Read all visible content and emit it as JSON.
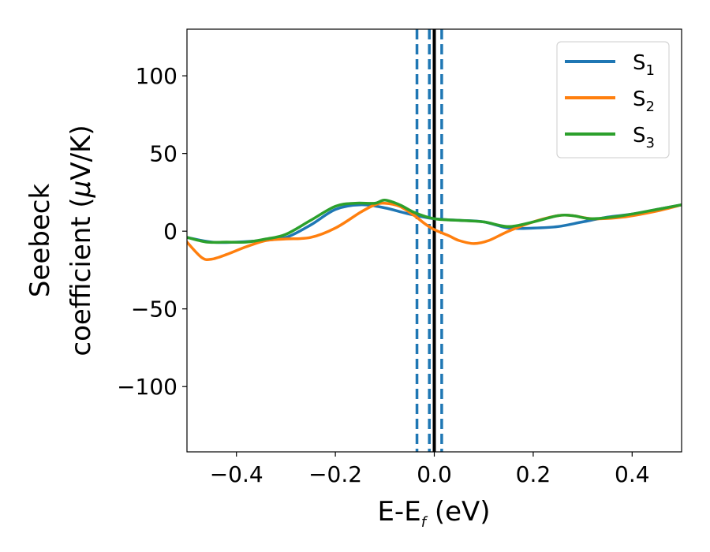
{
  "chart_data": {
    "type": "line",
    "xlabel": {
      "main": "E-E",
      "sub": "f",
      "unit": " (eV)"
    },
    "ylabel": {
      "line1": "Seebeck",
      "line2": "coefficient  (",
      "mu": "μ",
      "line2_end": "V/K)"
    },
    "xlim": [
      -0.5,
      0.5
    ],
    "ylim": [
      -142,
      130
    ],
    "xticks": [
      -0.4,
      -0.2,
      0.0,
      0.2,
      0.4
    ],
    "xtick_labels": [
      "−0.4",
      "−0.2",
      "0.0",
      "0.2",
      "0.4"
    ],
    "yticks": [
      100,
      50,
      0,
      -50,
      -100
    ],
    "ytick_labels": [
      "100",
      "50",
      "0",
      "−50",
      "−100"
    ],
    "grid": false,
    "legend_position": "top-right",
    "vlines": [
      {
        "x": 0.0,
        "style": "solid",
        "color": "#000000"
      },
      {
        "x": -0.035,
        "style": "dashed",
        "color": "#1f77b4"
      },
      {
        "x": -0.01,
        "style": "dashed",
        "color": "#1f77b4"
      },
      {
        "x": 0.015,
        "style": "dashed",
        "color": "#1f77b4"
      }
    ],
    "series": [
      {
        "name": "S",
        "sub": "1",
        "color": "#1f77b4",
        "points": [
          [
            -0.5,
            -4
          ],
          [
            -0.45,
            -7
          ],
          [
            -0.4,
            -7
          ],
          [
            -0.35,
            -6
          ],
          [
            -0.3,
            -4
          ],
          [
            -0.25,
            4
          ],
          [
            -0.2,
            14
          ],
          [
            -0.15,
            17
          ],
          [
            -0.1,
            15
          ],
          [
            -0.05,
            11
          ],
          [
            0.0,
            8
          ],
          [
            0.05,
            7
          ],
          [
            0.1,
            6
          ],
          [
            0.15,
            2
          ],
          [
            0.2,
            2
          ],
          [
            0.25,
            3
          ],
          [
            0.3,
            6
          ],
          [
            0.35,
            9
          ],
          [
            0.4,
            11
          ],
          [
            0.45,
            14
          ],
          [
            0.5,
            17
          ]
        ]
      },
      {
        "name": "S",
        "sub": "2",
        "color": "#ff7f0e",
        "points": [
          [
            -0.5,
            -7
          ],
          [
            -0.47,
            -17
          ],
          [
            -0.45,
            -18
          ],
          [
            -0.42,
            -15
          ],
          [
            -0.38,
            -10
          ],
          [
            -0.34,
            -6
          ],
          [
            -0.3,
            -5
          ],
          [
            -0.25,
            -4
          ],
          [
            -0.2,
            2
          ],
          [
            -0.15,
            12
          ],
          [
            -0.12,
            17
          ],
          [
            -0.1,
            18
          ],
          [
            -0.07,
            16
          ],
          [
            -0.04,
            10
          ],
          [
            -0.02,
            5
          ],
          [
            0.0,
            1
          ],
          [
            0.03,
            -3
          ],
          [
            0.05,
            -6
          ],
          [
            0.08,
            -8
          ],
          [
            0.11,
            -6
          ],
          [
            0.15,
            0
          ],
          [
            0.2,
            6
          ],
          [
            0.25,
            10
          ],
          [
            0.28,
            10
          ],
          [
            0.32,
            8
          ],
          [
            0.38,
            9
          ],
          [
            0.45,
            13
          ],
          [
            0.5,
            17
          ]
        ]
      },
      {
        "name": "S",
        "sub": "3",
        "color": "#2ca02c",
        "points": [
          [
            -0.5,
            -4
          ],
          [
            -0.46,
            -7
          ],
          [
            -0.42,
            -7
          ],
          [
            -0.38,
            -7
          ],
          [
            -0.34,
            -5
          ],
          [
            -0.3,
            -2
          ],
          [
            -0.25,
            7
          ],
          [
            -0.2,
            16
          ],
          [
            -0.16,
            18
          ],
          [
            -0.12,
            18
          ],
          [
            -0.1,
            20
          ],
          [
            -0.07,
            17
          ],
          [
            -0.04,
            12
          ],
          [
            0.0,
            8
          ],
          [
            0.05,
            7
          ],
          [
            0.1,
            6
          ],
          [
            0.15,
            3
          ],
          [
            0.2,
            6
          ],
          [
            0.25,
            10
          ],
          [
            0.28,
            10
          ],
          [
            0.32,
            8
          ],
          [
            0.38,
            10
          ],
          [
            0.45,
            14
          ],
          [
            0.5,
            17
          ]
        ]
      }
    ]
  }
}
